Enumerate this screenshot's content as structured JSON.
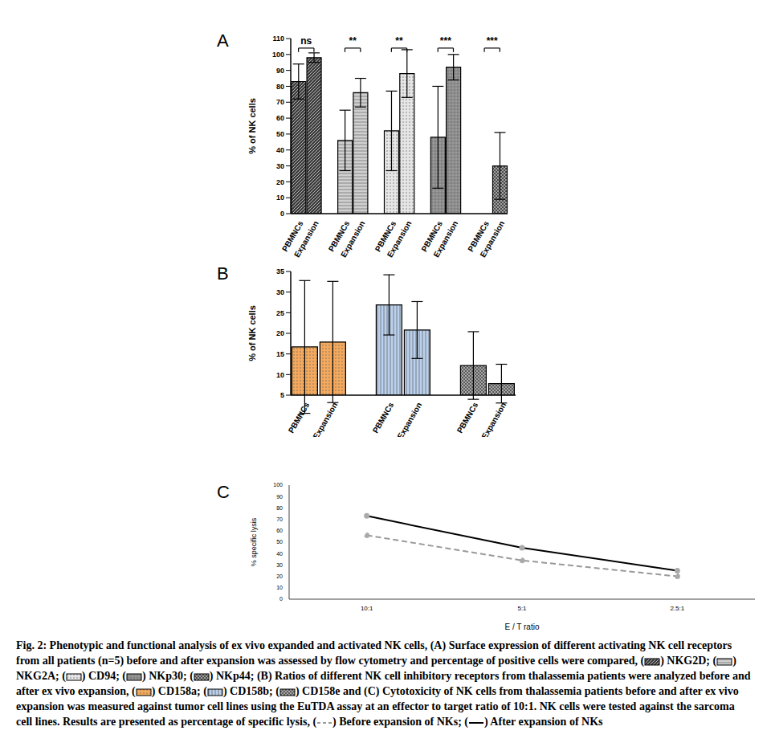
{
  "chart_data": [
    {
      "type": "bar",
      "title": "A",
      "ylabel": "% of NK cells",
      "categories": [
        "PBMNCs",
        "Expansion",
        null,
        "PBMNCs",
        "Expansion",
        null,
        "PBMNCs",
        "Expansion",
        null,
        "PBMNCs",
        "Expansion",
        null,
        "PBMNCs",
        "Expansion"
      ],
      "series": [
        {
          "color": "#3c3c3c",
          "significance": "ns",
          "values": [
            83,
            98,
            null,
            null,
            null,
            null,
            null,
            null,
            null,
            null,
            null,
            null,
            null,
            null
          ],
          "errors": [
            11,
            3,
            null,
            null,
            null,
            null,
            null,
            null,
            null,
            null,
            null,
            null,
            null,
            null
          ]
        },
        {
          "color": "#d0d0d0",
          "significance": "**",
          "values": [
            null,
            null,
            null,
            46,
            76,
            null,
            null,
            null,
            null,
            null,
            null,
            null,
            null,
            null
          ],
          "errors": [
            null,
            null,
            null,
            19,
            9,
            null,
            null,
            null,
            null,
            null,
            null,
            null,
            null,
            null
          ]
        },
        {
          "color": "#e6e6e6",
          "significance": "**",
          "values": [
            null,
            null,
            null,
            null,
            null,
            null,
            52,
            88,
            null,
            null,
            null,
            null,
            null,
            null
          ],
          "errors": [
            null,
            null,
            null,
            null,
            null,
            null,
            25,
            15,
            null,
            null,
            null,
            null,
            null,
            null
          ]
        },
        {
          "color": "#9b9b9b",
          "significance": "***",
          "values": [
            null,
            null,
            null,
            null,
            null,
            null,
            null,
            null,
            null,
            48,
            92,
            null,
            null,
            null
          ],
          "errors": [
            null,
            null,
            null,
            null,
            null,
            null,
            null,
            null,
            null,
            32,
            8,
            null,
            null,
            null
          ]
        },
        {
          "color": "#4a4a4a",
          "significance": "***",
          "values": [
            null,
            null,
            null,
            null,
            null,
            null,
            null,
            null,
            null,
            null,
            null,
            null,
            0,
            30
          ],
          "errors": [
            null,
            null,
            null,
            null,
            null,
            null,
            null,
            null,
            null,
            null,
            null,
            null,
            0,
            21
          ]
        }
      ],
      "ylim": [
        0,
        110
      ],
      "yticks": [
        0,
        10,
        20,
        30,
        40,
        50,
        60,
        70,
        80,
        90,
        100,
        110
      ]
    },
    {
      "type": "bar",
      "title": "B",
      "ylabel": "% of NK cells",
      "categories": [
        "PBMNCs",
        "Expansion",
        null,
        "PBMNCs",
        "Expansion",
        null,
        "PBMNCs",
        "Expansion"
      ],
      "series": [
        {
          "color": "#f4a95c",
          "values": [
            16.7,
            17.9,
            null,
            null,
            null,
            null,
            null,
            null
          ],
          "errors": [
            16.1,
            14.7,
            null,
            null,
            null,
            null,
            null,
            null
          ]
        },
        {
          "color": "#b9d1ee",
          "values": [
            null,
            null,
            null,
            26.9,
            20.8,
            null,
            null,
            null
          ],
          "errors": [
            null,
            null,
            null,
            7.3,
            6.9,
            null,
            null,
            null
          ]
        },
        {
          "color": "#5a5a5a",
          "values": [
            null,
            null,
            null,
            null,
            null,
            null,
            12.2,
            7.8
          ],
          "errors": [
            null,
            null,
            null,
            null,
            null,
            null,
            8.2,
            4.7
          ]
        }
      ],
      "ylim": [
        5,
        35
      ],
      "yticks": [
        5,
        10,
        15,
        20,
        25,
        30,
        35
      ]
    },
    {
      "type": "line",
      "title": "C",
      "xlabel": "E / T ratio",
      "ylabel": "% specific lysis",
      "categories": [
        "10:1",
        "5:1",
        "2.5:1"
      ],
      "series": [
        {
          "color": "#999999",
          "line_style": "dashed",
          "marker": "circle",
          "values": [
            56,
            34,
            20
          ]
        },
        {
          "color": "#000000",
          "line_style": "solid",
          "marker": "circle",
          "values": [
            73,
            45,
            25
          ]
        }
      ],
      "ylim": [
        0,
        100
      ],
      "yticks": [
        0,
        10,
        20,
        30,
        40,
        50,
        60,
        70,
        80,
        90,
        100
      ]
    }
  ],
  "caption": {
    "label": "Fig. 2:",
    "parts": [
      " Phenotypic and functional analysis of ex vivo expanded and activated NK cells, (A) Surface expression of different activating NK cell receptors from all patients (n=5) before and after expansion was assessed by flow cytometry and percentage of positive cells were compared, (",
      ") NKG2D; (",
      ") NKG2A; (",
      ") CD94; (",
      ") NKp30; (",
      ") NKp44; (B) Ratios of different NK cell inhibitory receptors from thalassemia patients were analyzed before and after ex vivo expansion, (",
      ") CD158a; (",
      ") CD158b; (",
      ") CD158e and (C) Cytotoxicity of NK cells from thalassemia patients before and after ex vivo expansion was measured against tumor cell lines using the EuTDA assay at an effector to target ratio of 10:1. NK cells were tested against the sarcoma cell lines. Results are presented as percentage of specific lysis, (",
      ") Before expansion of NKs; (",
      ") After expansion of NKs"
    ]
  }
}
